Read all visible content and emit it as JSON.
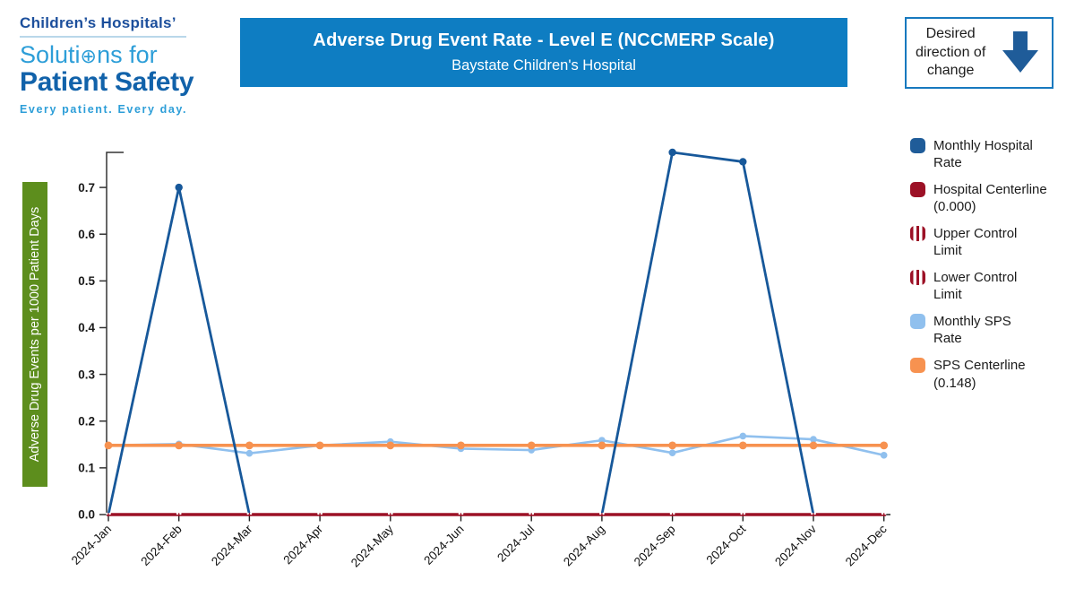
{
  "logo": {
    "line1": "Children’s Hospitals’",
    "line2_part1": "Soluti",
    "line2_o_icon": "⊕",
    "line2_part2": "ns for",
    "line3": "Patient Safety",
    "tagline": "Every patient. Every day."
  },
  "header": {
    "title": "Adverse Drug Event Rate - Level E (NCCMERP Scale)",
    "subtitle": "Baystate Children's Hospital"
  },
  "desired_direction": {
    "label": "Desired\ndirection of\nchange"
  },
  "legend": {
    "items": [
      {
        "id": "monthly-hospital-rate",
        "label": "Monthly Hospital\nRate",
        "swatch": "solid",
        "color": "#1f5c99"
      },
      {
        "id": "hospital-centerline",
        "label": "Hospital Centerline\n(0.000)",
        "swatch": "solid",
        "color": "#9c1126"
      },
      {
        "id": "upper-control-limit",
        "label": "Upper Control\nLimit",
        "swatch": "striped",
        "color": "#9c1126"
      },
      {
        "id": "lower-control-limit",
        "label": "Lower Control\nLimit",
        "swatch": "striped",
        "color": "#9c1126"
      },
      {
        "id": "monthly-sps-rate",
        "label": "Monthly SPS\nRate",
        "swatch": "solid",
        "color": "#90c0ee"
      },
      {
        "id": "sps-centerline",
        "label": "SPS Centerline\n(0.148)",
        "swatch": "solid",
        "color": "#f79250"
      }
    ]
  },
  "colors": {
    "banner_blue": "#0e7dc2",
    "ylabel_green": "#5d8e1d",
    "arrow_blue": "#1f5c99",
    "axis_text": "#1a1a1a"
  },
  "chart_data": {
    "type": "line",
    "title": "Adverse Drug Event Rate - Level E (NCCMERP Scale)",
    "subtitle": "Baystate Children's Hospital",
    "x": [
      "2024-Jan",
      "2024-Feb",
      "2024-Mar",
      "2024-Apr",
      "2024-May",
      "2024-Jun",
      "2024-Jul",
      "2024-Aug",
      "2024-Sep",
      "2024-Oct",
      "2024-Nov",
      "2024-Dec"
    ],
    "ylabel": "Adverse Drug Events per 1000 Patient Days",
    "ylim": [
      0,
      0.775
    ],
    "yticks": [
      0.0,
      0.1,
      0.2,
      0.3,
      0.4,
      0.5,
      0.6,
      0.7
    ],
    "grid": false,
    "legend_position": "right",
    "series": [
      {
        "name": "Monthly Hospital Rate",
        "color": "#17589a",
        "values": [
          0.0,
          0.7,
          0.0,
          0.0,
          0.0,
          0.0,
          0.0,
          0.0,
          0.775,
          0.755,
          0.0,
          0.0
        ]
      },
      {
        "name": "Hospital Centerline",
        "color": "#9c1126",
        "centerline_value": 0.0,
        "values": [
          0,
          0,
          0,
          0,
          0,
          0,
          0,
          0,
          0,
          0,
          0,
          0
        ]
      },
      {
        "name": "Upper Control Limit",
        "color": "#9c1126",
        "values": [
          0,
          0,
          0,
          0,
          0,
          0,
          0,
          0,
          0,
          0,
          0,
          0
        ]
      },
      {
        "name": "Lower Control Limit",
        "color": "#9c1126",
        "values": [
          0,
          0,
          0,
          0,
          0,
          0,
          0,
          0,
          0,
          0,
          0,
          0
        ]
      },
      {
        "name": "Monthly SPS Rate",
        "color": "#90c0ee",
        "values": [
          0.148,
          0.151,
          0.131,
          0.148,
          0.156,
          0.141,
          0.138,
          0.159,
          0.132,
          0.168,
          0.161,
          0.127
        ]
      },
      {
        "name": "SPS Centerline",
        "color": "#f79250",
        "centerline_value": 0.148,
        "values": [
          0.148,
          0.148,
          0.148,
          0.148,
          0.148,
          0.148,
          0.148,
          0.148,
          0.148,
          0.148,
          0.148,
          0.148
        ]
      }
    ]
  }
}
